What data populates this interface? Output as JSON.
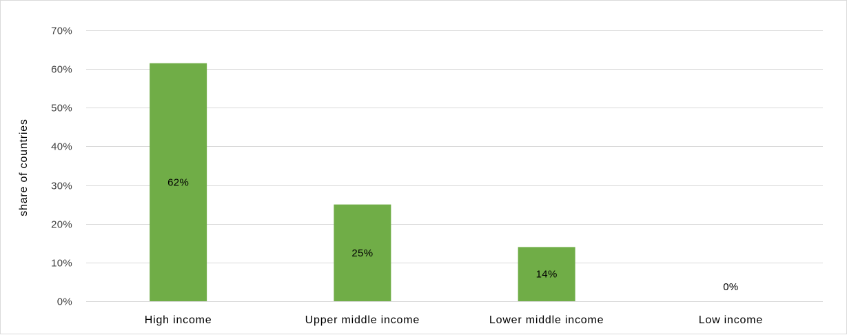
{
  "chart_data": {
    "type": "bar",
    "categories": [
      "High income",
      "Upper middle income",
      "Lower middle income",
      "Low income"
    ],
    "values": [
      0.615,
      0.25,
      0.14,
      0.0
    ],
    "data_labels": [
      "62%",
      "25%",
      "14%",
      "0%"
    ],
    "ylabel": "share of countries",
    "xlabel": "",
    "ylim": [
      0,
      0.7
    ],
    "yticks": [
      0,
      0.1,
      0.2,
      0.3,
      0.4,
      0.5,
      0.6,
      0.7
    ],
    "ytick_labels": [
      "0%",
      "10%",
      "20%",
      "30%",
      "40%",
      "50%",
      "60%",
      "70%"
    ],
    "grid": true,
    "legend": "none",
    "colors": {
      "bar": "#70ad47",
      "grid": "#d9d9d9",
      "axis": "#d9d9d9"
    }
  }
}
